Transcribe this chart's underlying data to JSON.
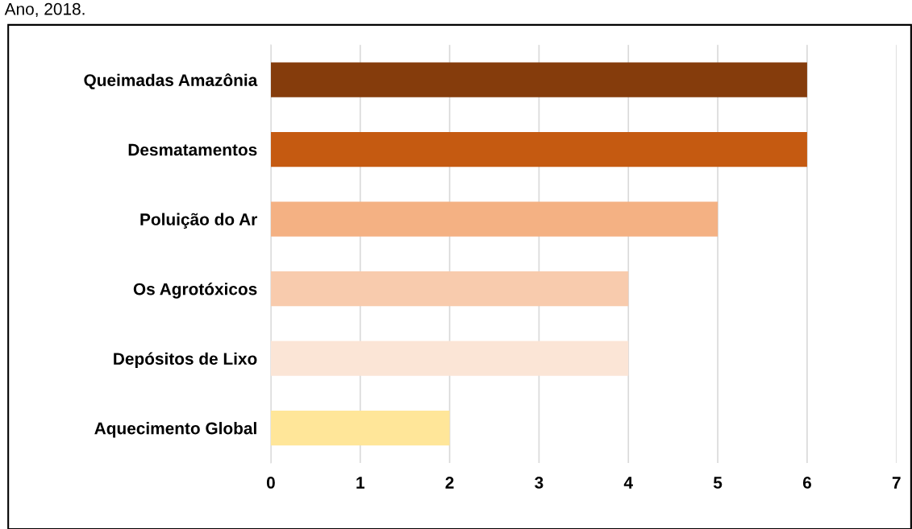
{
  "chart_data": {
    "type": "bar",
    "orientation": "horizontal",
    "title": "Ano, 2018.",
    "categories": [
      "Queimadas Amazônia",
      "Desmatamentos",
      "Poluição do Ar",
      "Os Agrotóxicos",
      "Depósitos de Lixo",
      "Aquecimento Global"
    ],
    "values": [
      6,
      6,
      5,
      4,
      4,
      2
    ],
    "colors": [
      "#853c0c",
      "#c55a11",
      "#f4b183",
      "#f8cbad",
      "#fbe5d6",
      "#ffe699"
    ],
    "xlim": [
      0,
      7
    ],
    "xticks": [
      0,
      1,
      2,
      3,
      4,
      5,
      6,
      7
    ],
    "grid": "x"
  }
}
